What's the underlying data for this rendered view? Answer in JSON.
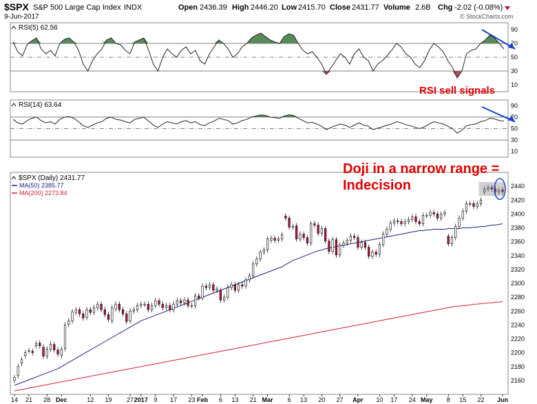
{
  "header": {
    "symbol": "$SPX",
    "name": "S&P 500 Large Cap Index",
    "exchange": "INDX",
    "date": "9-Jun-2017",
    "open_label": "Open",
    "open": "2436.39",
    "high_label": "High",
    "high": "2446.20",
    "low_label": "Low",
    "low": "2415.70",
    "close_label": "Close",
    "close": "2431.77",
    "volume_label": "Volume",
    "volume": "2.6B",
    "chg_label": "Chg",
    "chg": "-2.02 (-0.08%)",
    "brand": "© StockCharts.com"
  },
  "colors": {
    "up": "#ffffff",
    "down": "#c0143c",
    "candle_outline": "#000000",
    "ma50": "#1a237e",
    "ma200": "#d81b3c",
    "rsi_fill_over": "#5a8a5a",
    "rsi_fill_under": "#b05060",
    "annotation": "#e00000",
    "arrow": "#1a3fcf"
  },
  "chart_data": [
    {
      "type": "line",
      "name": "rsi5",
      "title": "RSI(5) 62.56",
      "ylim": [
        0,
        100
      ],
      "levels": [
        70,
        50,
        30
      ],
      "tick_labels": [
        "90",
        "70",
        "50",
        "30",
        "10"
      ],
      "tick_values": [
        90,
        70,
        50,
        30,
        10
      ],
      "values": [
        72,
        58,
        52,
        68,
        74,
        78,
        62,
        55,
        60,
        52,
        70,
        76,
        78,
        72,
        60,
        40,
        30,
        45,
        55,
        62,
        75,
        78,
        70,
        68,
        60,
        55,
        72,
        75,
        78,
        60,
        40,
        30,
        50,
        62,
        55,
        50,
        60,
        65,
        55,
        60,
        45,
        40,
        55,
        65,
        75,
        70,
        62,
        50,
        55,
        65,
        70,
        78,
        82,
        85,
        80,
        75,
        72,
        70,
        80,
        84,
        82,
        70,
        60,
        55,
        58,
        50,
        40,
        25,
        35,
        45,
        55,
        50,
        40,
        55,
        62,
        50,
        45,
        30,
        40,
        45,
        52,
        60,
        70,
        65,
        55,
        50,
        40,
        35,
        45,
        60,
        70,
        65,
        58,
        45,
        35,
        20,
        30,
        55,
        60,
        62,
        70,
        75,
        82,
        78,
        70,
        62
      ],
      "annotation": "RSI sell signals"
    },
    {
      "type": "line",
      "name": "rsi14",
      "title": "RSI(14) 63.64",
      "ylim": [
        0,
        100
      ],
      "levels": [
        70,
        50,
        30
      ],
      "tick_labels": [
        "90",
        "70",
        "50",
        "30",
        "10"
      ],
      "tick_values": [
        90,
        70,
        50,
        30,
        10
      ],
      "values": [
        66,
        60,
        58,
        64,
        68,
        70,
        64,
        60,
        62,
        58,
        66,
        70,
        71,
        68,
        62,
        55,
        52,
        56,
        60,
        62,
        68,
        70,
        66,
        65,
        62,
        60,
        66,
        68,
        70,
        63,
        56,
        52,
        58,
        62,
        60,
        58,
        62,
        64,
        60,
        62,
        57,
        55,
        60,
        63,
        68,
        66,
        64,
        58,
        60,
        64,
        66,
        70,
        72,
        74,
        73,
        70,
        69,
        68,
        72,
        74,
        73,
        68,
        64,
        60,
        61,
        58,
        54,
        48,
        52,
        55,
        58,
        56,
        52,
        56,
        60,
        56,
        54,
        48,
        51,
        53,
        56,
        58,
        62,
        60,
        57,
        55,
        52,
        50,
        53,
        58,
        62,
        60,
        58,
        54,
        50,
        42,
        47,
        55,
        57,
        58,
        62,
        64,
        68,
        67,
        64,
        63
      ],
      "annotation": "",
      "arrow": true
    },
    {
      "type": "candlestick",
      "name": "price",
      "title": "$SPX (Daily) 2431.77",
      "ylim": [
        2140,
        2460
      ],
      "tick_values": [
        2160,
        2180,
        2200,
        2220,
        2240,
        2260,
        2280,
        2300,
        2320,
        2340,
        2360,
        2380,
        2400,
        2420,
        2440
      ],
      "tick_labels": [
        "2160",
        "2180",
        "2200",
        "2220",
        "2240",
        "2260",
        "2280",
        "2300",
        "2320",
        "2340",
        "2360",
        "2380",
        "2400",
        "2420",
        "2440"
      ],
      "x_labels": [
        "14",
        "21",
        "28",
        "Dec",
        "12",
        "19",
        "27",
        "2017",
        "9",
        "17",
        "23",
        "Feb",
        "6",
        "13",
        "21",
        "Mar",
        "6",
        "13",
        "20",
        "27",
        "Apr",
        "10",
        "17",
        "24",
        "May",
        "8",
        "15",
        "22",
        "Jun"
      ],
      "x_label_index": [
        0,
        4,
        9,
        13,
        21,
        26,
        32,
        35,
        39,
        44,
        49,
        52,
        57,
        61,
        66,
        70,
        76,
        80,
        85,
        90,
        95,
        101,
        105,
        110,
        114,
        120,
        124,
        129,
        135
      ],
      "bold_labels": [
        "Dec",
        "2017",
        "Feb",
        "Mar",
        "Apr",
        "May",
        "Jun"
      ],
      "legend": [
        {
          "label": "MA(50) 2385.77",
          "color": "#1a237e"
        },
        {
          "label": "MA(200) 2273.84",
          "color": "#d81b3c"
        }
      ],
      "closes": [
        2164,
        2180,
        2190,
        2200,
        2203,
        2200,
        2213,
        2210,
        2195,
        2205,
        2212,
        2204,
        2198,
        2205,
        2240,
        2246,
        2259,
        2262,
        2256,
        2250,
        2262,
        2258,
        2265,
        2270,
        2262,
        2255,
        2248,
        2265,
        2270,
        2262,
        2256,
        2245,
        2260,
        2262,
        2268,
        2270,
        2270,
        2262,
        2268,
        2275,
        2270,
        2265,
        2268,
        2262,
        2270,
        2275,
        2272,
        2276,
        2268,
        2268,
        2282,
        2279,
        2296,
        2294,
        2298,
        2290,
        2292,
        2276,
        2280,
        2294,
        2298,
        2290,
        2298,
        2296,
        2305,
        2311,
        2328,
        2335,
        2345,
        2348,
        2364,
        2365,
        2362,
        2364,
        2370,
        2394,
        2381,
        2382,
        2364,
        2371,
        2366,
        2358,
        2386,
        2384,
        2372,
        2379,
        2361,
        2346,
        2363,
        2341,
        2355,
        2358,
        2362,
        2368,
        2366,
        2352,
        2359,
        2352,
        2339,
        2345,
        2342,
        2356,
        2371,
        2378,
        2387,
        2390,
        2389,
        2386,
        2389,
        2392,
        2396,
        2389,
        2386,
        2398,
        2398,
        2402,
        2400,
        2394,
        2400,
        2402,
        2357,
        2366,
        2382,
        2394,
        2404,
        2415,
        2415,
        2411,
        2415,
        2420,
        2436,
        2438,
        2436,
        2432,
        2434,
        2432
      ],
      "opens": [
        2160,
        2167,
        2185,
        2196,
        2203,
        2202,
        2210,
        2214,
        2208,
        2195,
        2205,
        2212,
        2204,
        2196,
        2206,
        2241,
        2246,
        2258,
        2262,
        2256,
        2251,
        2262,
        2258,
        2265,
        2270,
        2262,
        2255,
        2246,
        2263,
        2270,
        2262,
        2256,
        2246,
        2260,
        2262,
        2268,
        2270,
        2270,
        2262,
        2268,
        2275,
        2270,
        2265,
        2268,
        2262,
        2270,
        2275,
        2272,
        2276,
        2268,
        2268,
        2282,
        2279,
        2296,
        2294,
        2298,
        2290,
        2290,
        2276,
        2280,
        2294,
        2298,
        2290,
        2298,
        2296,
        2305,
        2311,
        2328,
        2335,
        2345,
        2348,
        2362,
        2365,
        2362,
        2364,
        2397,
        2394,
        2381,
        2383,
        2364,
        2371,
        2366,
        2358,
        2386,
        2384,
        2372,
        2379,
        2361,
        2346,
        2363,
        2341,
        2355,
        2358,
        2362,
        2368,
        2366,
        2352,
        2359,
        2352,
        2339,
        2345,
        2342,
        2356,
        2371,
        2378,
        2387,
        2390,
        2389,
        2386,
        2389,
        2392,
        2396,
        2389,
        2386,
        2398,
        2398,
        2402,
        2400,
        2394,
        2400,
        2368,
        2357,
        2366,
        2382,
        2394,
        2404,
        2415,
        2415,
        2411,
        2415,
        2432,
        2436,
        2438,
        2436,
        2432,
        2435
      ],
      "ma50": [
        2153,
        2155,
        2157,
        2159,
        2161,
        2163,
        2165,
        2167,
        2169,
        2171,
        2173,
        2175,
        2177,
        2180,
        2183,
        2186,
        2189,
        2192,
        2195,
        2198,
        2201,
        2204,
        2207,
        2210,
        2213,
        2216,
        2219,
        2222,
        2225,
        2228,
        2231,
        2234,
        2237,
        2240,
        2243,
        2246,
        2248,
        2250,
        2252,
        2254,
        2256,
        2258,
        2260,
        2262,
        2264,
        2266,
        2268,
        2270,
        2272,
        2274,
        2276,
        2278,
        2280,
        2282,
        2284,
        2286,
        2288,
        2290,
        2292,
        2294,
        2296,
        2298,
        2300,
        2302,
        2304,
        2306,
        2308,
        2310,
        2312,
        2314,
        2316,
        2318,
        2320,
        2322,
        2324,
        2327,
        2330,
        2333,
        2335,
        2337,
        2339,
        2341,
        2343,
        2345,
        2347,
        2348,
        2350,
        2351,
        2352,
        2353,
        2354,
        2355,
        2356,
        2357,
        2358,
        2359,
        2360,
        2361,
        2362,
        2363,
        2364,
        2365,
        2366,
        2367,
        2368,
        2369,
        2370,
        2371,
        2372,
        2373,
        2374,
        2375,
        2376,
        2376,
        2377,
        2377,
        2378,
        2378,
        2378,
        2378,
        2379,
        2379,
        2379,
        2379,
        2380,
        2380,
        2380,
        2381,
        2381,
        2382,
        2382,
        2383,
        2384,
        2384,
        2385,
        2386
      ],
      "ma200": [
        2145,
        2146,
        2147,
        2148,
        2149,
        2150,
        2151,
        2152,
        2153,
        2154,
        2155,
        2156,
        2157,
        2158,
        2159,
        2160,
        2161,
        2162,
        2163,
        2164,
        2165,
        2166,
        2167,
        2168,
        2169,
        2170,
        2171,
        2172,
        2173,
        2174,
        2175,
        2176,
        2177,
        2178,
        2179,
        2180,
        2181,
        2182,
        2183,
        2184,
        2185,
        2186,
        2187,
        2188,
        2189,
        2190,
        2191,
        2192,
        2193,
        2194,
        2195,
        2196,
        2197,
        2198,
        2199,
        2200,
        2201,
        2202,
        2203,
        2204,
        2205,
        2206,
        2207,
        2208,
        2209,
        2210,
        2211,
        2212,
        2213,
        2214,
        2215,
        2216,
        2217,
        2218,
        2219,
        2220,
        2221,
        2222,
        2223,
        2224,
        2225,
        2226,
        2227,
        2228,
        2229,
        2230,
        2231,
        2232,
        2233,
        2234,
        2235,
        2236,
        2237,
        2238,
        2239,
        2240,
        2241,
        2242,
        2243,
        2244,
        2245,
        2246,
        2247,
        2248,
        2249,
        2250,
        2251,
        2252,
        2253,
        2254,
        2255,
        2256,
        2257,
        2258,
        2259,
        2260,
        2261,
        2262,
        2263,
        2264,
        2265,
        2266,
        2267,
        2267,
        2268,
        2268,
        2269,
        2270,
        2270,
        2271,
        2271,
        2272,
        2272,
        2273,
        2273,
        2274
      ],
      "annotation_line1": "Doji in a narrow range =",
      "annotation_line2": "Indecision"
    }
  ]
}
